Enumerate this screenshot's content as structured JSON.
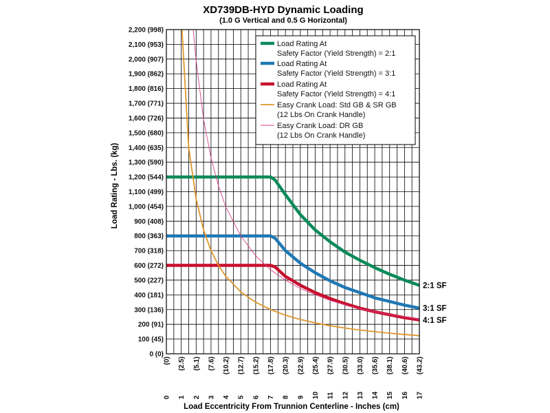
{
  "chart_data": {
    "type": "line",
    "title": "XD739DB-HYD Dynamic Loading",
    "subtitle": "(1.0 G Vertical and 0.5 G Horizontal)",
    "xlabel": "Load Eccentricity From Trunnion Centerline - Inches (cm)",
    "ylabel": "Load Rating - Lbs. (kg)",
    "xlim": [
      0,
      17
    ],
    "ylim": [
      0,
      2200
    ],
    "grid": true,
    "legend_position": "top-right",
    "x_ticks": [
      {
        "value": 0,
        "in": "0",
        "cm": "(0)"
      },
      {
        "value": 1,
        "in": "1",
        "cm": "(2.5)"
      },
      {
        "value": 2,
        "in": "2",
        "cm": "(5.1)"
      },
      {
        "value": 3,
        "in": "3",
        "cm": "(7.6)"
      },
      {
        "value": 4,
        "in": "4",
        "cm": "(10.2)"
      },
      {
        "value": 5,
        "in": "5",
        "cm": "(12.7)"
      },
      {
        "value": 6,
        "in": "6",
        "cm": "(15.2)"
      },
      {
        "value": 7,
        "in": "7",
        "cm": "(17.8)"
      },
      {
        "value": 8,
        "in": "8",
        "cm": "(20.3)"
      },
      {
        "value": 9,
        "in": "9",
        "cm": "(22.9)"
      },
      {
        "value": 10,
        "in": "10",
        "cm": "(25.4)"
      },
      {
        "value": 11,
        "in": "11",
        "cm": "(27.9)"
      },
      {
        "value": 12,
        "in": "12",
        "cm": "(30.5)"
      },
      {
        "value": 13,
        "in": "13",
        "cm": "(33.0)"
      },
      {
        "value": 14,
        "in": "14",
        "cm": "(35.6)"
      },
      {
        "value": 15,
        "in": "15",
        "cm": "(38.1)"
      },
      {
        "value": 16,
        "in": "16",
        "cm": "(40.6)"
      },
      {
        "value": 17,
        "in": "17",
        "cm": "(43.2)"
      }
    ],
    "y_ticks": [
      {
        "value": 0,
        "label": "0 (0)"
      },
      {
        "value": 100,
        "label": "100 (45)"
      },
      {
        "value": 200,
        "label": "200 (91)"
      },
      {
        "value": 300,
        "label": "300 (136)"
      },
      {
        "value": 400,
        "label": "400 (181)"
      },
      {
        "value": 500,
        "label": "500 (227)"
      },
      {
        "value": 600,
        "label": "600 (272)"
      },
      {
        "value": 700,
        "label": "700 (318)"
      },
      {
        "value": 800,
        "label": "800 (363)"
      },
      {
        "value": 900,
        "label": "900 (408)"
      },
      {
        "value": 1000,
        "label": "1,000 (454)"
      },
      {
        "value": 1100,
        "label": "1,100 (499)"
      },
      {
        "value": 1200,
        "label": "1,200 (544)"
      },
      {
        "value": 1300,
        "label": "1,300 (590)"
      },
      {
        "value": 1400,
        "label": "1,400 (635)"
      },
      {
        "value": 1500,
        "label": "1,500 (680)"
      },
      {
        "value": 1600,
        "label": "1,600 (726)"
      },
      {
        "value": 1700,
        "label": "1,700 (771)"
      },
      {
        "value": 1800,
        "label": "1,800 (816)"
      },
      {
        "value": 1900,
        "label": "1,900 (862)"
      },
      {
        "value": 2000,
        "label": "2,000 (907)"
      },
      {
        "value": 2100,
        "label": "2,100 (953)"
      },
      {
        "value": 2200,
        "label": "2,200 (998)"
      }
    ],
    "series": [
      {
        "key": "sf2",
        "legend_lines": [
          "Load Rating At",
          "Safety Factor (Yield Strength) = 2:1"
        ],
        "end_label": "2:1 SF",
        "color": "#0a8a5a",
        "style": "thick",
        "points": [
          [
            0,
            1200
          ],
          [
            7,
            1200
          ],
          [
            7.3,
            1180
          ],
          [
            8,
            1080
          ],
          [
            9,
            945
          ],
          [
            10,
            840
          ],
          [
            11,
            760
          ],
          [
            12,
            690
          ],
          [
            13,
            635
          ],
          [
            14,
            585
          ],
          [
            15,
            540
          ],
          [
            16,
            500
          ],
          [
            17,
            465
          ]
        ]
      },
      {
        "key": "sf3",
        "legend_lines": [
          "Load Rating At",
          "Safety Factor (Yield Strength) = 3:1"
        ],
        "end_label": "3:1 SF",
        "color": "#1f78b4",
        "style": "thick",
        "points": [
          [
            0,
            800
          ],
          [
            7,
            800
          ],
          [
            7.3,
            785
          ],
          [
            8,
            700
          ],
          [
            9,
            615
          ],
          [
            10,
            550
          ],
          [
            11,
            495
          ],
          [
            12,
            450
          ],
          [
            13,
            415
          ],
          [
            14,
            380
          ],
          [
            15,
            355
          ],
          [
            16,
            330
          ],
          [
            17,
            310
          ]
        ]
      },
      {
        "key": "sf4",
        "legend_lines": [
          "Load Rating At",
          "Safety Factor (Yield Strength) = 4:1"
        ],
        "end_label": "4:1 SF",
        "color": "#c8102e",
        "style": "thick",
        "points": [
          [
            0,
            600
          ],
          [
            7,
            600
          ],
          [
            7.3,
            590
          ],
          [
            8,
            525
          ],
          [
            9,
            465
          ],
          [
            10,
            415
          ],
          [
            11,
            375
          ],
          [
            12,
            340
          ],
          [
            13,
            310
          ],
          [
            14,
            285
          ],
          [
            15,
            265
          ],
          [
            16,
            245
          ],
          [
            17,
            230
          ]
        ]
      },
      {
        "key": "crank_std",
        "legend_lines": [
          "Easy Crank Load: Std GB & SR GB",
          "(12 Lbs On Crank Handle)"
        ],
        "end_label": "",
        "color": "#e0952a",
        "style": "medium",
        "points": [
          [
            1.05,
            2200
          ],
          [
            1.2,
            1930
          ],
          [
            1.5,
            1400
          ],
          [
            2,
            1050
          ],
          [
            2.5,
            840
          ],
          [
            3,
            700
          ],
          [
            3.5,
            600
          ],
          [
            4,
            525
          ],
          [
            5,
            420
          ],
          [
            6,
            350
          ],
          [
            7,
            300
          ],
          [
            8,
            262
          ],
          [
            9,
            233
          ],
          [
            10,
            210
          ],
          [
            11,
            190
          ],
          [
            12,
            175
          ],
          [
            13,
            161
          ],
          [
            14,
            150
          ],
          [
            15,
            140
          ],
          [
            16,
            131
          ],
          [
            17,
            123
          ]
        ]
      },
      {
        "key": "crank_dr",
        "legend_lines": [
          "Easy Crank Load: DR GB",
          "(12 Lbs On Crank Handle)"
        ],
        "end_label": "",
        "color": "#d8408a",
        "style": "thin",
        "points": [
          [
            1.8,
            2200
          ],
          [
            2,
            1990
          ],
          [
            2.5,
            1590
          ],
          [
            3,
            1330
          ],
          [
            3.5,
            1140
          ],
          [
            4,
            995
          ],
          [
            5,
            800
          ],
          [
            6,
            665
          ],
          [
            7,
            570
          ],
          [
            8,
            500
          ],
          [
            9,
            443
          ],
          [
            10,
            400
          ],
          [
            11,
            362
          ],
          [
            12,
            332
          ],
          [
            13,
            306
          ],
          [
            14,
            285
          ],
          [
            15,
            266
          ],
          [
            16,
            250
          ],
          [
            17,
            235
          ]
        ]
      }
    ]
  }
}
